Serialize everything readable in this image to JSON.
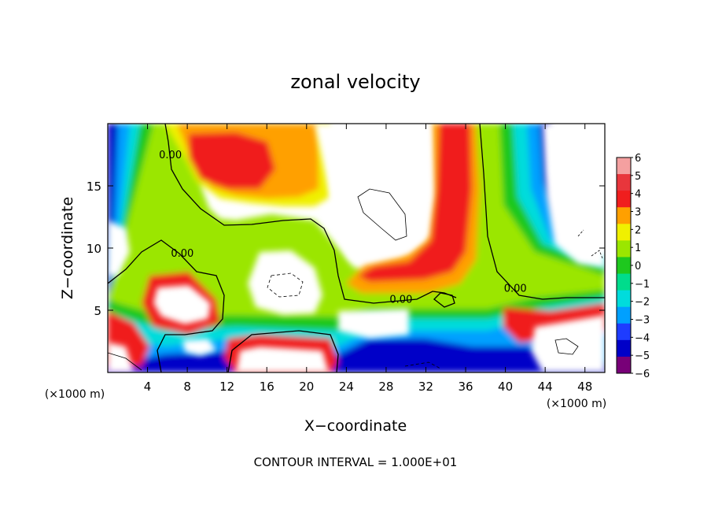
{
  "chart_data": {
    "type": "heatmap",
    "title": "zonal velocity",
    "xlabel": "X−coordinate",
    "ylabel": "Z−coordinate",
    "x_unit_left": "(×1000 m)",
    "x_unit_right": "(×1000 m)",
    "footer": "CONTOUR INTERVAL = 1.000E+01",
    "xlim": [
      0,
      50
    ],
    "ylim": [
      0,
      20
    ],
    "x_ticks": [
      4,
      8,
      12,
      16,
      20,
      24,
      28,
      32,
      36,
      40,
      44,
      48
    ],
    "x_tick_labels": [
      "4",
      "8",
      "12",
      "16",
      "20",
      "24",
      "28",
      "32",
      "36",
      "40",
      "44",
      "48"
    ],
    "y_ticks": [
      5,
      10,
      15
    ],
    "y_tick_labels": [
      "5",
      "10",
      "15"
    ],
    "colorbar": {
      "levels": [
        6,
        5,
        4,
        3,
        2,
        1,
        0,
        -1,
        -2,
        -3,
        -4,
        -5,
        -6
      ],
      "labels": [
        "6",
        "5",
        "4",
        "3",
        "2",
        "1",
        "0",
        "−1",
        "−2",
        "−3",
        "−4",
        "−5",
        "−6"
      ],
      "colors": [
        "#f4a0a0",
        "#e8363c",
        "#f01e1e",
        "#ffa000",
        "#f0f000",
        "#9be600",
        "#1ec81e",
        "#00dc8c",
        "#00dcdc",
        "#00a0ff",
        "#1e3cff",
        "#0000c8",
        "#780078"
      ]
    },
    "contour_labels": [
      {
        "x": 6.3,
        "z": 17.2,
        "text": "0.00"
      },
      {
        "x": 7.5,
        "z": 9.3,
        "text": "0.00"
      },
      {
        "x": 29.5,
        "z": 5.6,
        "text": "0.00"
      },
      {
        "x": 41.0,
        "z": 6.5,
        "text": "0.00"
      }
    ]
  }
}
